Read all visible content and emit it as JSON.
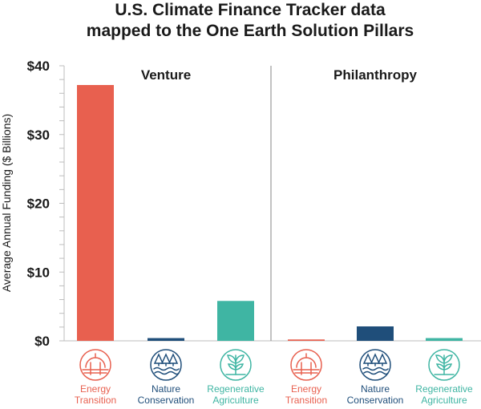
{
  "chart_data": {
    "type": "bar",
    "title_lines": [
      "U.S. Climate Finance Tracker data",
      "mapped to the One Earth Solution Pillars"
    ],
    "ylabel": "Average Annual Funding ($ Billions)",
    "ylim": [
      0,
      40
    ],
    "yticks": [
      {
        "value": 0,
        "label": "$0"
      },
      {
        "value": 10,
        "label": "$10"
      },
      {
        "value": 20,
        "label": "$20"
      },
      {
        "value": 30,
        "label": "$30"
      },
      {
        "value": 40,
        "label": "$40"
      }
    ],
    "categories": [
      {
        "key": "energy",
        "lines": [
          "Energy",
          "Transition"
        ],
        "color": "#E8604F",
        "icon": "energy-transition-icon"
      },
      {
        "key": "nature",
        "lines": [
          "Nature",
          "Conservation"
        ],
        "color": "#1F4E7A",
        "icon": "nature-conservation-icon"
      },
      {
        "key": "regen",
        "lines": [
          "Regenerative",
          "Agriculture"
        ],
        "color": "#3FB5A3",
        "icon": "regenerative-agriculture-icon"
      }
    ],
    "panels": [
      {
        "name": "Venture",
        "values": [
          37.2,
          0.4,
          5.8
        ]
      },
      {
        "name": "Philanthropy",
        "values": [
          0.2,
          2.1,
          0.4
        ]
      }
    ],
    "grid": false
  }
}
